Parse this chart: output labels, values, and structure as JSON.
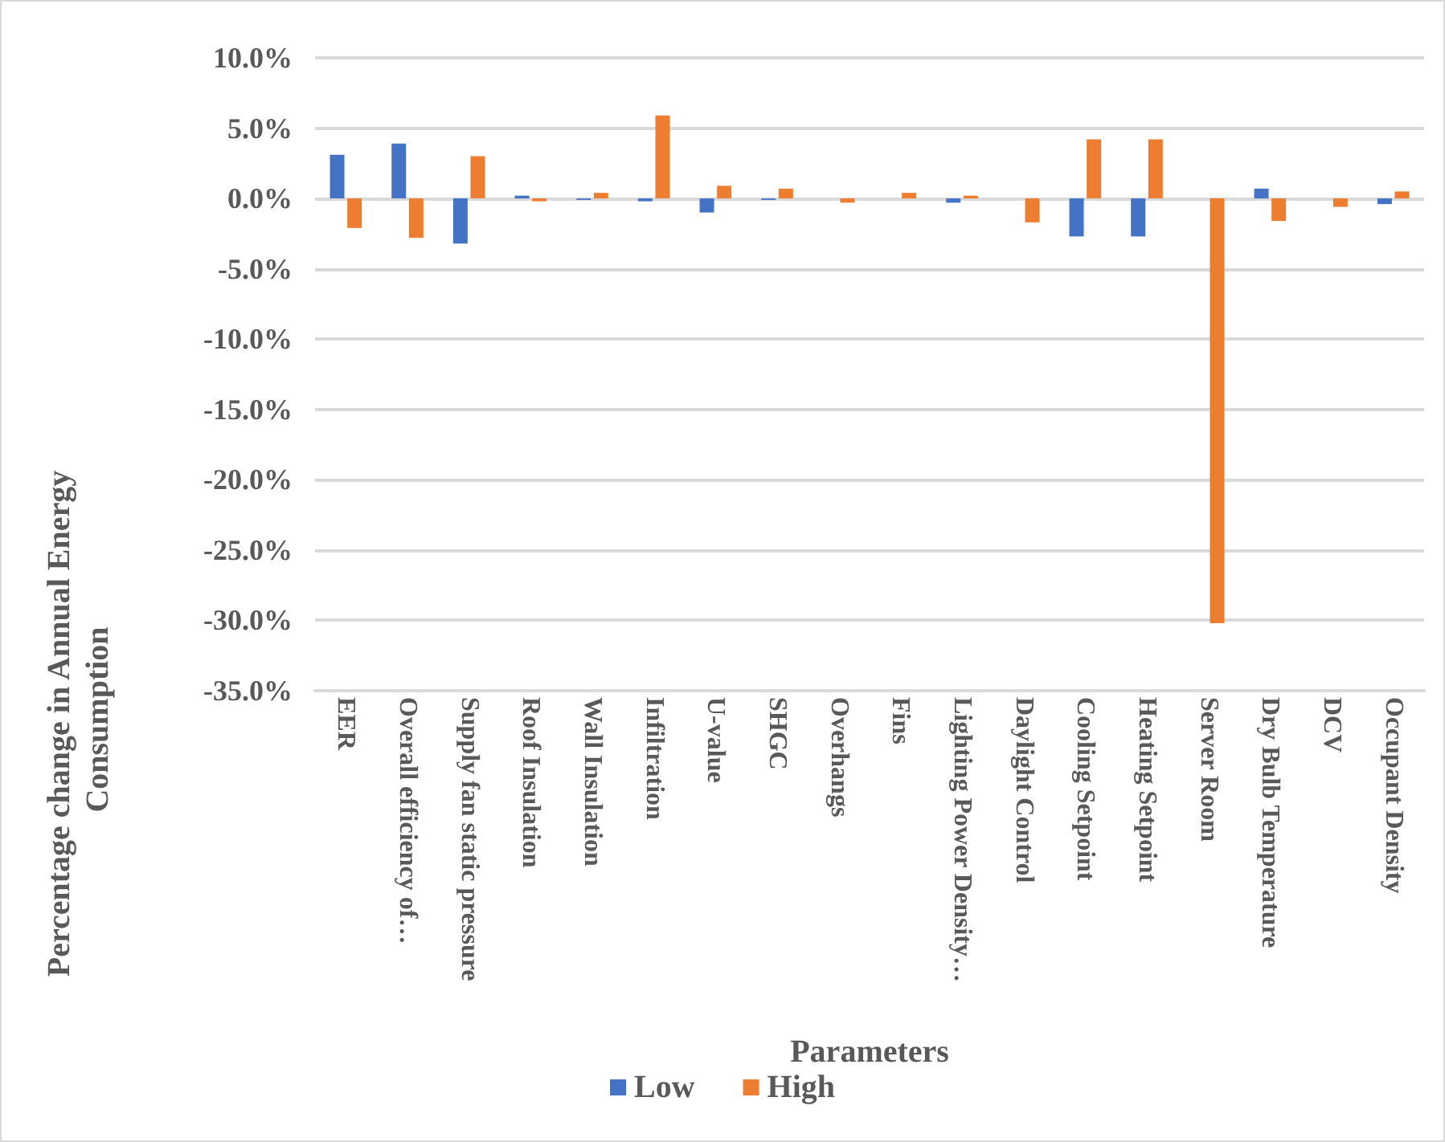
{
  "chart_data": {
    "type": "bar",
    "xlabel": "Parameters",
    "ylabel": "Percentage change in Annual Energy Consumption",
    "categories": [
      "EER",
      "Overall efficiency of…",
      "Supply fan static pressure",
      "Roof Insulation",
      "Wall Insulation",
      "Infiltration",
      "U-value",
      "SHGC",
      "Overhangs",
      "Fins",
      "Lighting Power Density…",
      "Daylight Control",
      "Cooling Setpoint",
      "Heating Setpoint",
      "Server Room",
      "Dry Bulb Temperature",
      "DCV",
      "Occupant Density"
    ],
    "series": [
      {
        "name": "Low",
        "color": "#4472c4",
        "values": [
          3.1,
          3.9,
          -3.2,
          0.2,
          -0.1,
          -0.2,
          -1.0,
          -0.1,
          0,
          0,
          -0.3,
          0,
          -2.7,
          -2.7,
          0,
          0.7,
          0,
          -0.4
        ]
      },
      {
        "name": "High",
        "color": "#ed7d31",
        "values": [
          -2.1,
          -2.8,
          3.0,
          -0.2,
          0.4,
          5.9,
          0.9,
          0.7,
          -0.3,
          0.4,
          0.2,
          -1.7,
          4.2,
          4.2,
          -30.2,
          -1.6,
          -0.6,
          0.5
        ]
      }
    ],
    "ylim": [
      -35,
      10
    ],
    "yticks": [
      {
        "value": -35,
        "label": "-35.0%"
      },
      {
        "value": -30,
        "label": "-30.0%"
      },
      {
        "value": -25,
        "label": "-25.0%"
      },
      {
        "value": -20,
        "label": "-20.0%"
      },
      {
        "value": -15,
        "label": "-15.0%"
      },
      {
        "value": -10,
        "label": "-10.0%"
      },
      {
        "value": -5,
        "label": "-5.0%"
      },
      {
        "value": 0,
        "label": "0.0%"
      },
      {
        "value": 5,
        "label": "5.0%"
      },
      {
        "value": 10,
        "label": "10.0%"
      }
    ],
    "grid": "y",
    "legend": "bottom"
  }
}
